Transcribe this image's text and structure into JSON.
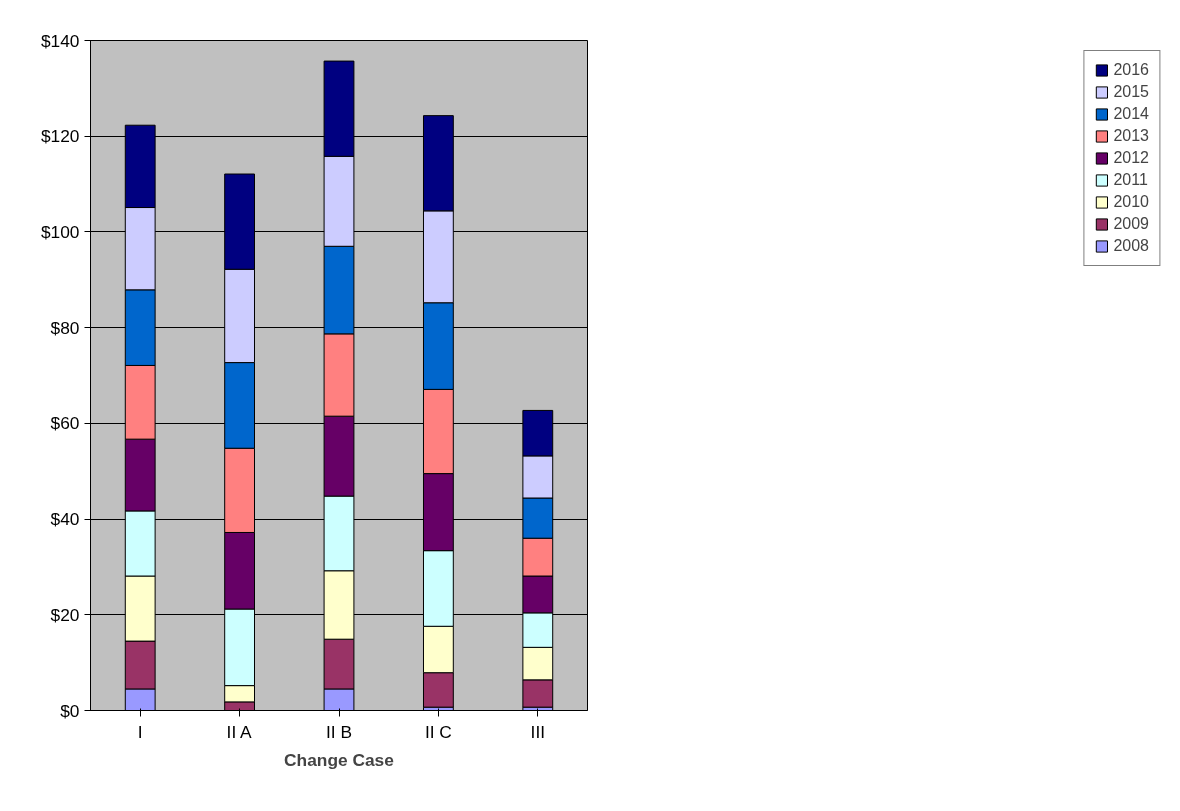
{
  "chart_data": {
    "type": "bar",
    "stacked": true,
    "xlabel": "Change Case",
    "categories": [
      "I",
      "II A",
      "II B",
      "II C",
      "III"
    ],
    "series": [
      {
        "name": "2008",
        "color": "#9999ff",
        "values": [
          4.5,
          0,
          4.5,
          0.7,
          0.7
        ]
      },
      {
        "name": "2009",
        "color": "#993366",
        "values": [
          10,
          1.8,
          10.4,
          7.2,
          5.7
        ]
      },
      {
        "name": "2010",
        "color": "#ffffcc",
        "values": [
          13.6,
          3.4,
          14.3,
          9.7,
          6.8
        ]
      },
      {
        "name": "2011",
        "color": "#ccffff",
        "values": [
          13.6,
          16,
          15.6,
          15.8,
          7.2
        ]
      },
      {
        "name": "2012",
        "color": "#660066",
        "values": [
          15,
          16,
          16.7,
          16.1,
          7.7
        ]
      },
      {
        "name": "2013",
        "color": "#ff8080",
        "values": [
          15.4,
          17.6,
          17.2,
          17.6,
          7.9
        ]
      },
      {
        "name": "2014",
        "color": "#0066cc",
        "values": [
          15.8,
          17.9,
          18.3,
          18.1,
          8.4
        ]
      },
      {
        "name": "2015",
        "color": "#ccccff",
        "values": [
          17.2,
          19.5,
          18.8,
          19.2,
          8.8
        ]
      },
      {
        "name": "2016",
        "color": "#000080",
        "values": [
          17.2,
          19.9,
          19.9,
          19.9,
          9.5
        ]
      }
    ],
    "ylim": [
      0,
      140
    ],
    "yticks": [
      {
        "value": 0,
        "label": "$0"
      },
      {
        "value": 20,
        "label": "$20"
      },
      {
        "value": 40,
        "label": "$40"
      },
      {
        "value": 60,
        "label": "$60"
      },
      {
        "value": 80,
        "label": "$80"
      },
      {
        "value": 100,
        "label": "$100"
      },
      {
        "value": 120,
        "label": "$120"
      },
      {
        "value": 140,
        "label": "$140"
      }
    ],
    "grid": "y",
    "legend": "right"
  }
}
